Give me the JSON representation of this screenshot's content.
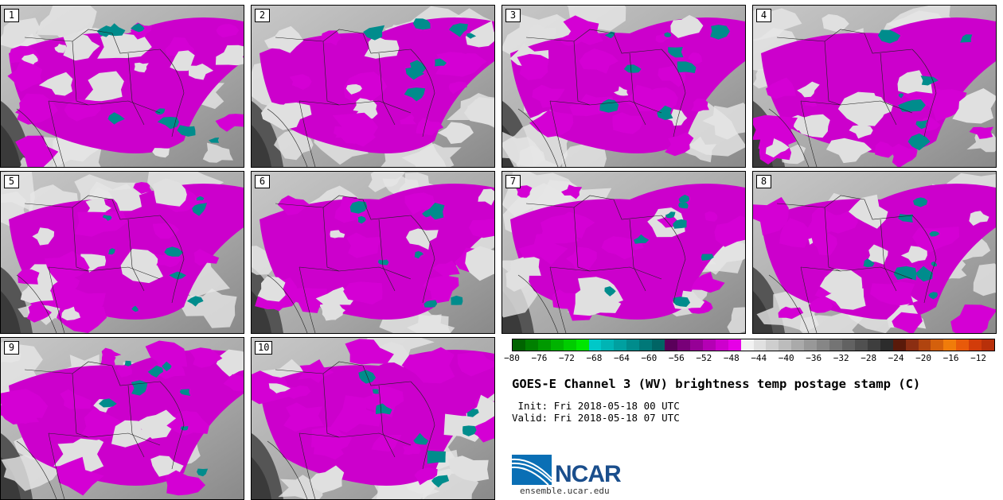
{
  "panels": [
    {
      "label": "1",
      "variant": 0
    },
    {
      "label": "2",
      "variant": 1
    },
    {
      "label": "3",
      "variant": 2
    },
    {
      "label": "4",
      "variant": 3
    },
    {
      "label": "5",
      "variant": 4
    },
    {
      "label": "6",
      "variant": 5
    },
    {
      "label": "7",
      "variant": 6
    },
    {
      "label": "8",
      "variant": 7
    },
    {
      "label": "9",
      "variant": 8
    },
    {
      "label": "10",
      "variant": 9
    }
  ],
  "colorbar": {
    "colors": [
      "#006400",
      "#008000",
      "#009900",
      "#00b300",
      "#00cc00",
      "#00e600",
      "#00c8c8",
      "#00b4b4",
      "#00a0a0",
      "#008c8c",
      "#007878",
      "#006464",
      "#5a005a",
      "#780078",
      "#960096",
      "#b400b4",
      "#cd00cd",
      "#e600e6",
      "#f2f2f2",
      "#e0e0e0",
      "#cecece",
      "#bcbcbc",
      "#aaaaaa",
      "#989898",
      "#868686",
      "#747474",
      "#626262",
      "#505050",
      "#3e3e3e",
      "#2c2c2c",
      "#5a1a0a",
      "#8b2e12",
      "#b0440f",
      "#d4600c",
      "#f07c0a",
      "#e85a0a",
      "#d23c0a",
      "#b8300a"
    ],
    "tick_labels": [
      "−80",
      "−76",
      "−72",
      "−68",
      "−64",
      "−60",
      "−56",
      "−52",
      "−48",
      "−44",
      "−40",
      "−36",
      "−32",
      "−28",
      "−24",
      "−20",
      "−16",
      "−12"
    ],
    "min": -80,
    "max": -10
  },
  "title": "GOES-E Channel 3 (WV) brightness temp postage stamp (C)",
  "init_line": " Init: Fri 2018-05-18 00 UTC",
  "valid_line": "Valid: Fri 2018-05-18 07 UTC",
  "logo_text": "NCAR",
  "site": "ensemble.ucar.edu"
}
